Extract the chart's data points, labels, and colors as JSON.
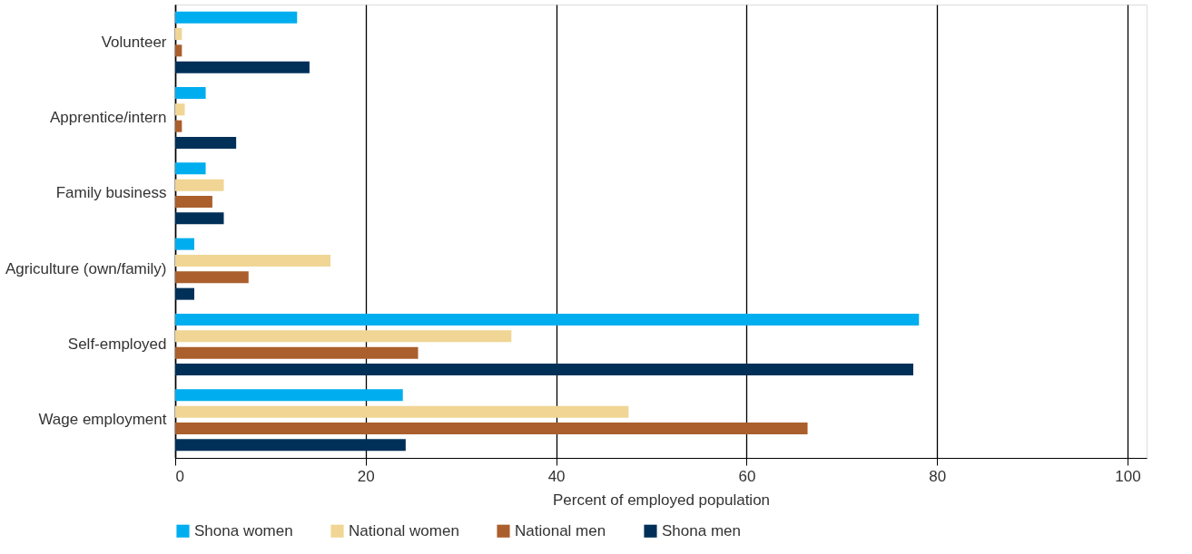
{
  "chart_data": {
    "type": "bar",
    "orientation": "horizontal",
    "xlabel": "Percent of employed population",
    "categories": [
      "Volunteer",
      "Apprentice/intern",
      "Family business",
      "Agriculture (own/family)",
      "Self-employed",
      "Wage employment"
    ],
    "series": [
      {
        "name": "Shona women",
        "color": "#00aeef",
        "values": [
          12.8,
          3.2,
          3.2,
          2.0,
          78.1,
          23.9
        ]
      },
      {
        "name": "National women",
        "color": "#f0d595",
        "values": [
          0.7,
          1.0,
          5.1,
          16.3,
          35.3,
          47.6
        ]
      },
      {
        "name": "National men",
        "color": "#aa5f2c",
        "values": [
          0.7,
          0.7,
          3.9,
          7.7,
          25.5,
          66.4
        ]
      },
      {
        "name": "Shona men",
        "color": "#003057",
        "values": [
          14.1,
          6.4,
          5.1,
          2.0,
          77.5,
          24.2
        ]
      }
    ],
    "xlim": [
      0,
      102
    ],
    "xticks": [
      0,
      20,
      40,
      60,
      80,
      100
    ],
    "grid": "x",
    "legend": "bottom"
  }
}
